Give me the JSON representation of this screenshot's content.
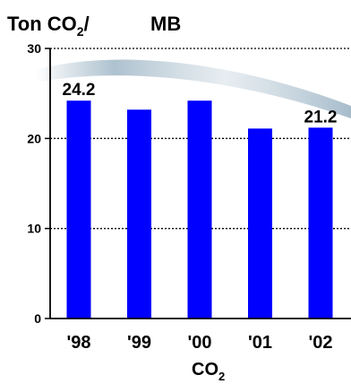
{
  "chart_data": {
    "type": "bar",
    "title_main": "Ton CO",
    "title_sub": "2",
    "title_suffix": "/",
    "title_unit": "MB",
    "xlabel_main": "CO",
    "xlabel_sub": "2",
    "categories": [
      "'98",
      "'99",
      "'00",
      "'01",
      "'02"
    ],
    "values": [
      24.2,
      23.2,
      24.2,
      21.1,
      21.2
    ],
    "data_labels": [
      "24.2",
      "",
      "",
      "",
      "21.2"
    ],
    "ylim": [
      0,
      30
    ],
    "yticks": [
      0,
      10,
      20,
      30
    ],
    "grid": true,
    "bar_color": "#0000ff",
    "grid_color": "#000000",
    "backdrop_color": "#6b8fa8"
  }
}
